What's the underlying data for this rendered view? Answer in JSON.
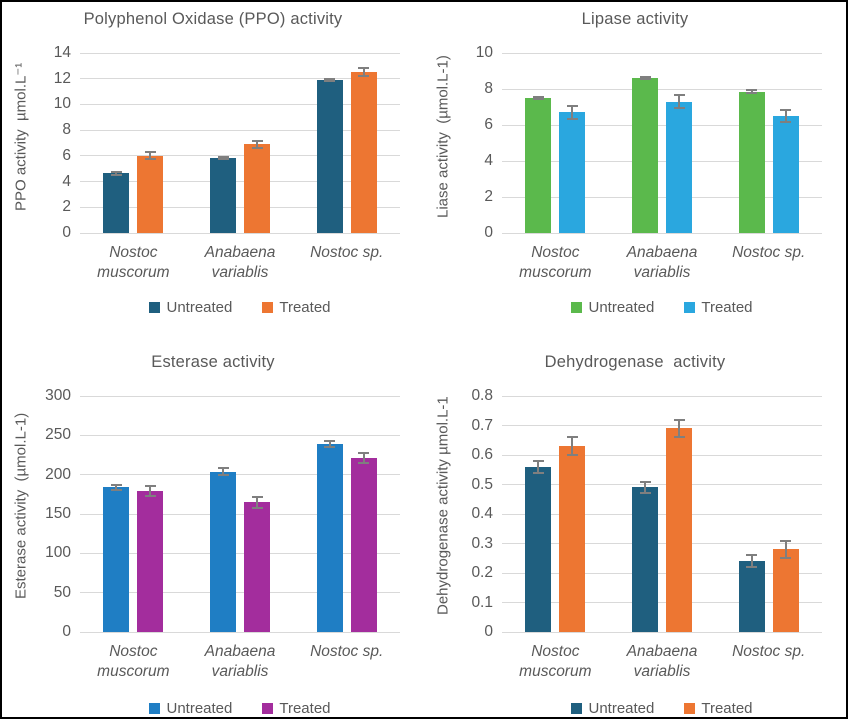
{
  "figure": {
    "background": "#FFFFFF",
    "border_color": "#000000",
    "text_color": "#595959",
    "gridline_color": "#D9D9D9",
    "error_bar_color": "#7F7F7F"
  },
  "chart_data": [
    {
      "type": "bar",
      "title": "Polyphenol Oxidase (PPO) activity",
      "ylabel": "PPO activity  µmol.L⁻¹",
      "xlabel": "",
      "ylim": [
        0,
        14
      ],
      "ystep": 2,
      "decimals": 0,
      "grid": true,
      "legend_position": "bottom",
      "categories": [
        [
          "Nostoc",
          "muscorum"
        ],
        [
          "Anabaena",
          "variablis"
        ],
        [
          "Nostoc sp."
        ]
      ],
      "series": [
        {
          "name": "Untreated",
          "color": "#1F5F7F",
          "values": [
            4.65,
            5.85,
            11.9
          ],
          "errors": [
            0.1,
            0.07,
            0.1
          ]
        },
        {
          "name": "Treated",
          "color": "#ED7632",
          "values": [
            6.0,
            6.9,
            12.55
          ],
          "errors": [
            0.28,
            0.25,
            0.3
          ]
        }
      ]
    },
    {
      "type": "bar",
      "title": "Lipase activity",
      "ylabel": "Liase activity  (µmol.L-1)",
      "xlabel": "",
      "ylim": [
        0,
        10
      ],
      "ystep": 2,
      "decimals": 0,
      "grid": true,
      "legend_position": "bottom",
      "categories": [
        [
          "Nostoc",
          "muscorum"
        ],
        [
          "Anabaena",
          "variablis"
        ],
        [
          "Nostoc sp."
        ]
      ],
      "series": [
        {
          "name": "Untreated",
          "color": "#5BB94C",
          "values": [
            7.5,
            8.6,
            7.85
          ],
          "errors": [
            0.07,
            0.07,
            0.07
          ]
        },
        {
          "name": "Treated",
          "color": "#2AA7DF",
          "values": [
            6.7,
            7.3,
            6.5
          ],
          "errors": [
            0.38,
            0.35,
            0.35
          ]
        }
      ]
    },
    {
      "type": "bar",
      "title": "Esterase activity",
      "ylabel": "Esterase activity  (µmol.L-1)",
      "xlabel": "",
      "ylim": [
        0,
        300
      ],
      "ystep": 50,
      "decimals": 0,
      "grid": true,
      "legend_position": "bottom",
      "categories": [
        [
          "Nostoc",
          "muscorum"
        ],
        [
          "Anabaena",
          "variablis"
        ],
        [
          "Nostoc sp."
        ]
      ],
      "series": [
        {
          "name": "Untreated",
          "color": "#1F7EC4",
          "values": [
            184,
            204,
            239
          ],
          "errors": [
            3,
            4,
            4
          ]
        },
        {
          "name": "Treated",
          "color": "#A32D9D",
          "values": [
            179,
            165,
            221
          ],
          "errors": [
            6,
            7,
            6
          ]
        }
      ]
    },
    {
      "type": "bar",
      "title": "Dehydrogenase  activity",
      "ylabel": "Dehydrogenase activity µmol.L-1",
      "xlabel": "",
      "ylim": [
        0,
        0.8
      ],
      "ystep": 0.1,
      "decimals": 1,
      "grid": true,
      "legend_position": "bottom",
      "categories": [
        [
          "Nostoc",
          "muscorum"
        ],
        [
          "Anabaena",
          "variablis"
        ],
        [
          "Nostoc sp."
        ]
      ],
      "series": [
        {
          "name": "Untreated",
          "color": "#1F5F7F",
          "values": [
            0.56,
            0.49,
            0.24
          ],
          "errors": [
            0.02,
            0.02,
            0.02
          ]
        },
        {
          "name": "Treated",
          "color": "#ED7632",
          "values": [
            0.63,
            0.69,
            0.28
          ],
          "errors": [
            0.03,
            0.03,
            0.03
          ]
        }
      ]
    }
  ]
}
